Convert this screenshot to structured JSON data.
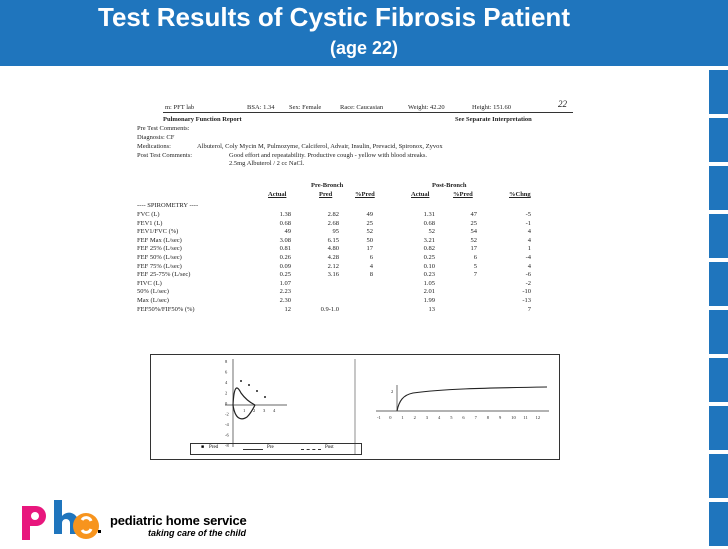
{
  "slide": {
    "title": "Test Results of Cystic Fibrosis Patient",
    "subtitle": "(age 22)"
  },
  "report": {
    "top_line": {
      "unit": "m:  PFT lab",
      "bsa": "BSA:  1.34",
      "sex": "Sex:  Female",
      "race": "Race:  Caucasian",
      "weight": "Weight:  42.20",
      "height": "Height:  151.60",
      "note": "22"
    },
    "header_left": "Pulmonary Function Report",
    "header_right": "See Separate Interpretation",
    "pre_test_comments": "Pre Test Comments:",
    "diagnosis": "Diagnosis:   CF",
    "medications_label": "Medications:",
    "medications": "Albuterol, Coly Mycin M, Pulmozyme, Calciferol, Advair, Insulin, Prevacid, Spironox, Zyvox",
    "post_test_label": "Post Test Comments:",
    "post_test_1": "Good effort and repeatability.  Productive cough - yellow with blood streaks.",
    "post_test_2": "2.5mg Albuterol / 2 cc NaCl.",
    "group_pre": "Pre-Bronch",
    "group_post": "Post-Bronch",
    "columns": [
      "Actual",
      "Pred",
      "%Pred",
      "Actual",
      "%Pred",
      "%Chng"
    ],
    "section": "---- SPIROMETRY ----",
    "rows": [
      {
        "label": "FVC (L)",
        "a": "1.38",
        "p": "2.82",
        "pp": "49",
        "pa": "1.31",
        "ppp": "47",
        "ch": "-5"
      },
      {
        "label": "FEV1 (L)",
        "a": "0.68",
        "p": "2.68",
        "pp": "25",
        "pa": "0.68",
        "ppp": "25",
        "ch": "-1"
      },
      {
        "label": "FEV1/FVC (%)",
        "a": "49",
        "p": "95",
        "pp": "52",
        "pa": "52",
        "ppp": "54",
        "ch": "4"
      },
      {
        "label": "FEF Max (L/sec)",
        "a": "3.08",
        "p": "6.15",
        "pp": "50",
        "pa": "3.21",
        "ppp": "52",
        "ch": "4"
      },
      {
        "label": "FEF 25% (L/sec)",
        "a": "0.81",
        "p": "4.80",
        "pp": "17",
        "pa": "0.82",
        "ppp": "17",
        "ch": "1"
      },
      {
        "label": "FEF 50% (L/sec)",
        "a": "0.26",
        "p": "4.28",
        "pp": "6",
        "pa": "0.25",
        "ppp": "6",
        "ch": "-4"
      },
      {
        "label": "FEF 75% (L/sec)",
        "a": "0.09",
        "p": "2.12",
        "pp": "4",
        "pa": "0.10",
        "ppp": "5",
        "ch": "4"
      },
      {
        "label": "FEF 25-75% (L/sec)",
        "a": "0.25",
        "p": "3.16",
        "pp": "8",
        "pa": "0.23",
        "ppp": "7",
        "ch": "-6"
      },
      {
        "label": "FIVC (L)",
        "a": "1.07",
        "p": "",
        "pp": "",
        "pa": "1.05",
        "ppp": "",
        "ch": "-2"
      },
      {
        "label": "50% (L/sec)",
        "a": "2.23",
        "p": "",
        "pp": "",
        "pa": "2.01",
        "ppp": "",
        "ch": "-10"
      },
      {
        "label": "Max (L/sec)",
        "a": "2.30",
        "p": "",
        "pp": "",
        "pa": "1.99",
        "ppp": "",
        "ch": "-13"
      },
      {
        "label": "FEF50%/FIF50% (%)",
        "a": "12",
        "p": "0.9-1.0",
        "pp": "",
        "pa": "13",
        "ppp": "",
        "ch": "7"
      }
    ]
  },
  "graphs": {
    "left_y_ticks": [
      "8",
      "6",
      "4",
      "2",
      "0",
      "-2",
      "-4",
      "-6",
      "-8"
    ],
    "left_x_ticks": [
      "1",
      "2",
      "3",
      "4"
    ],
    "right_x_ticks": [
      "-1",
      "0",
      "1",
      "2",
      "3",
      "4",
      "5",
      "6",
      "7",
      "8",
      "9",
      "10",
      "11",
      "12"
    ],
    "right_y_tick": "2",
    "legend": [
      "Pred",
      "Pre",
      "Post"
    ]
  },
  "brand": {
    "name": "pediatric home service",
    "tagline": "taking care of the child",
    "colors": {
      "p": "#e8177d",
      "h": "#1f75bd",
      "s": "#f7941d",
      "header": "#1f75bd"
    }
  }
}
